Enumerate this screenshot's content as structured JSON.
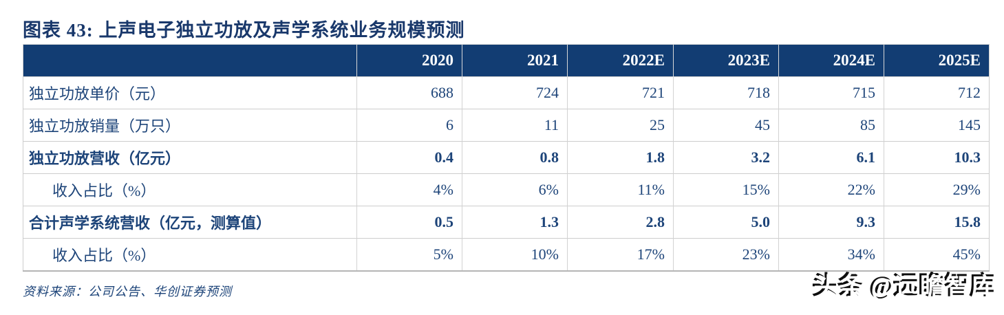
{
  "title": "图表 43:  上声电子独立功放及声学系统业务规模预测",
  "table": {
    "columns": [
      "",
      "2020",
      "2021",
      "2022E",
      "2023E",
      "2024E",
      "2025E"
    ],
    "rows": [
      {
        "label": "独立功放单价（元）",
        "values": [
          "688",
          "724",
          "721",
          "718",
          "715",
          "712"
        ],
        "bold": false,
        "indent": false
      },
      {
        "label": "独立功放销量（万只）",
        "values": [
          "6",
          "11",
          "25",
          "45",
          "85",
          "145"
        ],
        "bold": false,
        "indent": false
      },
      {
        "label": "独立功放营收（亿元）",
        "values": [
          "0.4",
          "0.8",
          "1.8",
          "3.2",
          "6.1",
          "10.3"
        ],
        "bold": true,
        "indent": false
      },
      {
        "label": "收入占比（%）",
        "values": [
          "4%",
          "6%",
          "11%",
          "15%",
          "22%",
          "29%"
        ],
        "bold": false,
        "indent": true
      },
      {
        "label": "合计声学系统营收（亿元，测算值）",
        "values": [
          "0.5",
          "1.3",
          "2.8",
          "5.0",
          "9.3",
          "15.8"
        ],
        "bold": true,
        "indent": false
      },
      {
        "label": "收入占比（%）",
        "values": [
          "5%",
          "10%",
          "17%",
          "23%",
          "34%",
          "45%"
        ],
        "bold": false,
        "indent": true
      }
    ]
  },
  "footer": {
    "source": "资料来源：公司公告、华创证券预测"
  },
  "watermark": "头条 @远瞻智库",
  "colors": {
    "header_bg": "#123d73",
    "title_text": "#19386b",
    "cell_text": "#1d4479",
    "border": "#cccccc"
  }
}
